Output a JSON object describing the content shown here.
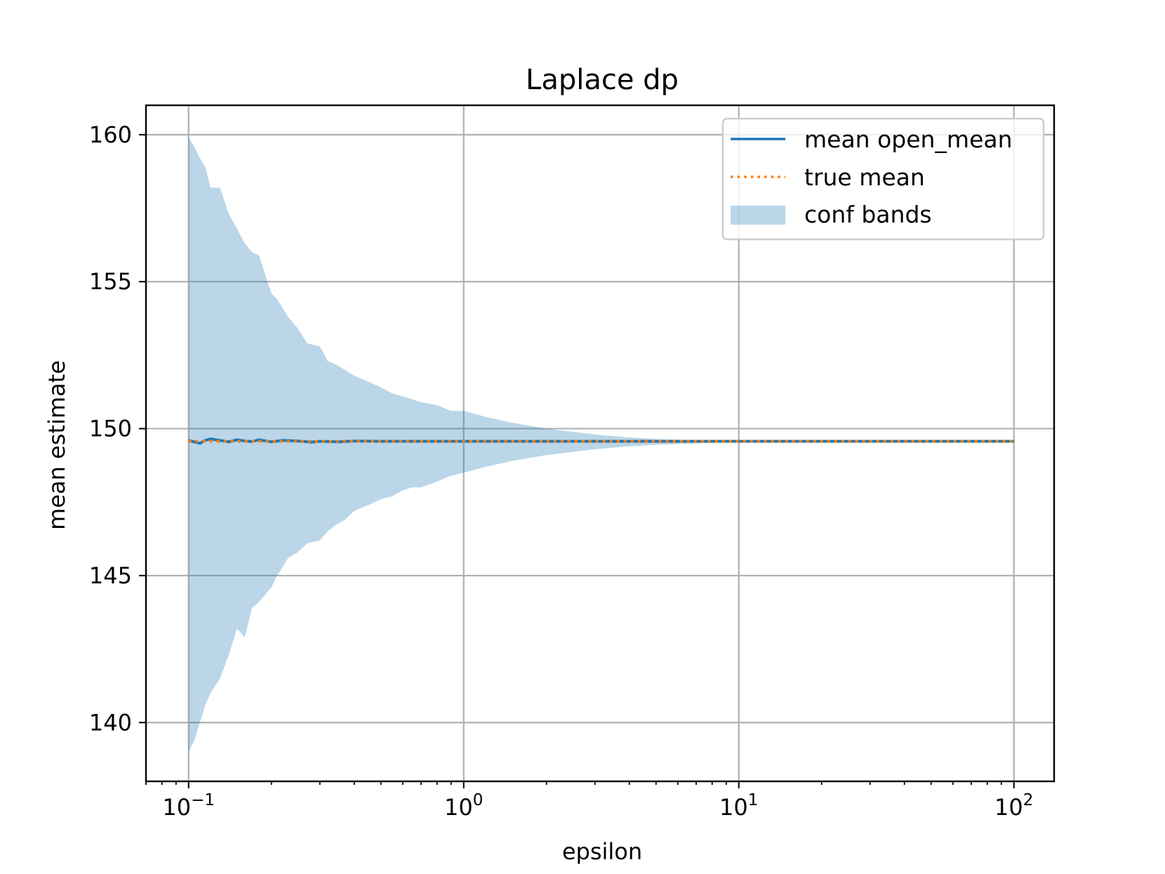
{
  "chart_data": {
    "type": "line",
    "title": "Laplace dp",
    "xlabel": "epsilon",
    "ylabel": "mean estimate",
    "xscale": "log",
    "xlim": [
      0.07,
      140
    ],
    "ylim": [
      138.0,
      161.0
    ],
    "grid": true,
    "legend_position": "top-right",
    "x_ticks": [
      {
        "value": 0.1,
        "base": "10",
        "exp": "−1"
      },
      {
        "value": 1,
        "base": "10",
        "exp": "0"
      },
      {
        "value": 10,
        "base": "10",
        "exp": "1"
      },
      {
        "value": 100,
        "base": "10",
        "exp": "2"
      }
    ],
    "y_ticks": [
      {
        "value": 140,
        "label": "140"
      },
      {
        "value": 145,
        "label": "145"
      },
      {
        "value": 150,
        "label": "150"
      },
      {
        "value": 155,
        "label": "155"
      },
      {
        "value": 160,
        "label": "160"
      }
    ],
    "band_edges": {
      "x": [
        0.1,
        0.105,
        0.11,
        0.115,
        0.12,
        0.13,
        0.14,
        0.15,
        0.16,
        0.17,
        0.18,
        0.2,
        0.21,
        0.23,
        0.25,
        0.27,
        0.3,
        0.32,
        0.34,
        0.37,
        0.4,
        0.45,
        0.5,
        0.55,
        0.6,
        0.65,
        0.7,
        0.8,
        0.9,
        1.0,
        1.2,
        1.5,
        2.0,
        3.0,
        4.0,
        5.0,
        7.0,
        10.0,
        15.0,
        20.0,
        30.0,
        50.0,
        70.0,
        100.0
      ],
      "upper": [
        159.9,
        159.6,
        159.2,
        158.9,
        158.2,
        158.2,
        157.3,
        156.8,
        156.3,
        156.0,
        155.9,
        154.6,
        154.4,
        153.8,
        153.4,
        152.9,
        152.8,
        152.3,
        152.2,
        152.0,
        151.8,
        151.6,
        151.4,
        151.2,
        151.1,
        151.0,
        150.9,
        150.8,
        150.6,
        150.6,
        150.4,
        150.2,
        150.0,
        149.8,
        149.7,
        149.65,
        149.6,
        149.57,
        149.57,
        149.57,
        149.57,
        149.57,
        149.57,
        149.57
      ],
      "lower": [
        139.0,
        139.4,
        140.0,
        140.6,
        141.0,
        141.5,
        142.3,
        143.2,
        142.9,
        143.9,
        144.1,
        144.6,
        145.0,
        145.6,
        145.8,
        146.1,
        146.2,
        146.5,
        146.7,
        146.9,
        147.2,
        147.4,
        147.6,
        147.7,
        147.9,
        148.0,
        148.0,
        148.2,
        148.4,
        148.5,
        148.7,
        148.9,
        149.1,
        149.3,
        149.4,
        149.45,
        149.5,
        149.55,
        149.57,
        149.57,
        149.57,
        149.57,
        149.57,
        149.57
      ]
    },
    "series": [
      {
        "name": "mean open_mean",
        "color": "#1f77b4",
        "style": "solid",
        "x": [
          0.1,
          0.105,
          0.11,
          0.115,
          0.12,
          0.13,
          0.14,
          0.15,
          0.16,
          0.17,
          0.18,
          0.2,
          0.22,
          0.25,
          0.28,
          0.3,
          0.35,
          0.4,
          0.5,
          0.7,
          1.0,
          2.0,
          5.0,
          10.0,
          100.0
        ],
        "y": [
          149.6,
          149.55,
          149.5,
          149.6,
          149.65,
          149.6,
          149.55,
          149.62,
          149.58,
          149.56,
          149.62,
          149.55,
          149.6,
          149.58,
          149.54,
          149.57,
          149.55,
          149.58,
          149.57,
          149.57,
          149.57,
          149.57,
          149.57,
          149.57,
          149.57
        ]
      },
      {
        "name": "true mean",
        "color": "#ff7f0e",
        "style": "dotted",
        "x": [
          0.1,
          100.0
        ],
        "y": [
          149.57,
          149.57
        ]
      }
    ],
    "band": {
      "name": "conf bands",
      "color": "#1f77b4",
      "opacity": 0.3
    }
  }
}
